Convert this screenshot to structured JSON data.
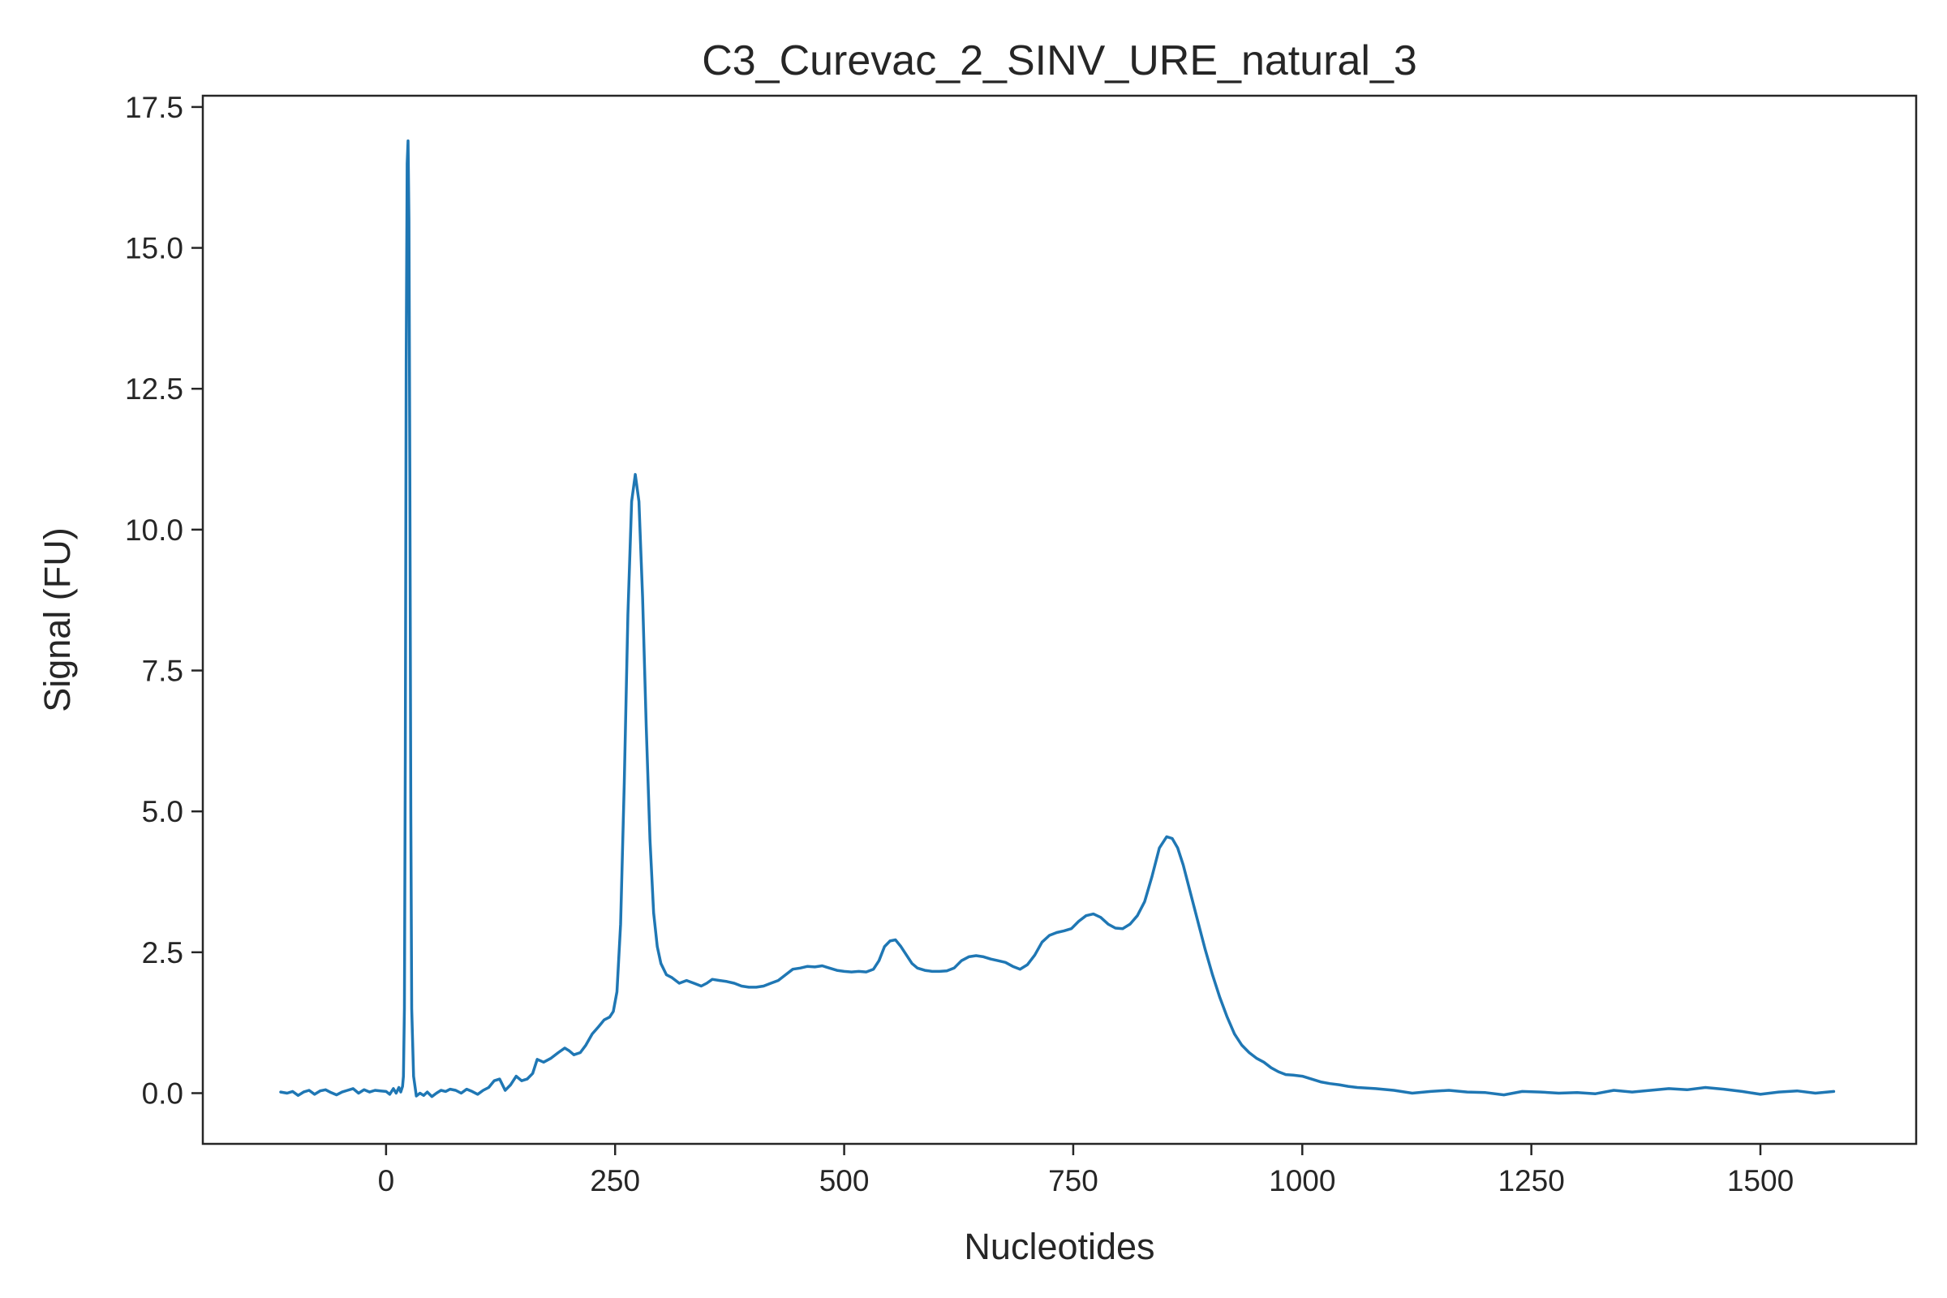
{
  "chart_data": {
    "type": "line",
    "title": "C3_Curevac_2_SINV_URE_natural_3",
    "xlabel": "Nucleotides",
    "ylabel": "Signal (FU)",
    "xlim": [
      -200,
      1670
    ],
    "ylim": [
      -0.9,
      17.7
    ],
    "xticks": [
      0,
      250,
      500,
      750,
      1000,
      1250,
      1500
    ],
    "xtick_labels": [
      "0",
      "250",
      "500",
      "750",
      "1000",
      "1250",
      "1500"
    ],
    "yticks": [
      0.0,
      2.5,
      5.0,
      7.5,
      10.0,
      12.5,
      15.0,
      17.5
    ],
    "ytick_labels": [
      "0.0",
      "2.5",
      "5.0",
      "7.5",
      "10.0",
      "12.5",
      "15.0",
      "17.5"
    ],
    "grid": false,
    "legend": "none",
    "series": [
      {
        "color": "#1f77b4",
        "points": [
          [
            -115,
            0.02
          ],
          [
            -108,
            0.0
          ],
          [
            -102,
            0.03
          ],
          [
            -96,
            -0.04
          ],
          [
            -90,
            0.02
          ],
          [
            -84,
            0.05
          ],
          [
            -78,
            -0.02
          ],
          [
            -72,
            0.04
          ],
          [
            -66,
            0.06
          ],
          [
            -60,
            0.01
          ],
          [
            -54,
            -0.03
          ],
          [
            -48,
            0.02
          ],
          [
            -42,
            0.05
          ],
          [
            -36,
            0.08
          ],
          [
            -30,
            0.0
          ],
          [
            -24,
            0.06
          ],
          [
            -18,
            0.02
          ],
          [
            -12,
            0.05
          ],
          [
            -6,
            0.04
          ],
          [
            0,
            0.03
          ],
          [
            4,
            -0.02
          ],
          [
            8,
            0.08
          ],
          [
            11,
            0.0
          ],
          [
            14,
            0.1
          ],
          [
            16,
            0.02
          ],
          [
            18,
            0.12
          ],
          [
            19,
            0.3
          ],
          [
            20,
            1.5
          ],
          [
            21,
            6.0
          ],
          [
            22,
            13.0
          ],
          [
            23,
            16.5
          ],
          [
            24,
            16.9
          ],
          [
            25,
            15.5
          ],
          [
            26,
            11.0
          ],
          [
            27,
            5.0
          ],
          [
            28,
            1.5
          ],
          [
            30,
            0.3
          ],
          [
            33,
            -0.05
          ],
          [
            37,
            0.0
          ],
          [
            41,
            -0.04
          ],
          [
            45,
            0.02
          ],
          [
            50,
            -0.06
          ],
          [
            55,
            0.0
          ],
          [
            60,
            0.05
          ],
          [
            65,
            0.03
          ],
          [
            70,
            0.07
          ],
          [
            76,
            0.05
          ],
          [
            82,
            0.0
          ],
          [
            88,
            0.07
          ],
          [
            94,
            0.03
          ],
          [
            100,
            -0.02
          ],
          [
            106,
            0.05
          ],
          [
            112,
            0.1
          ],
          [
            118,
            0.22
          ],
          [
            124,
            0.25
          ],
          [
            130,
            0.05
          ],
          [
            136,
            0.15
          ],
          [
            142,
            0.3
          ],
          [
            148,
            0.22
          ],
          [
            154,
            0.25
          ],
          [
            160,
            0.35
          ],
          [
            165,
            0.6
          ],
          [
            172,
            0.55
          ],
          [
            180,
            0.62
          ],
          [
            188,
            0.72
          ],
          [
            195,
            0.8
          ],
          [
            200,
            0.75
          ],
          [
            205,
            0.68
          ],
          [
            212,
            0.72
          ],
          [
            218,
            0.85
          ],
          [
            225,
            1.05
          ],
          [
            232,
            1.18
          ],
          [
            238,
            1.3
          ],
          [
            244,
            1.35
          ],
          [
            248,
            1.45
          ],
          [
            252,
            1.8
          ],
          [
            256,
            3.0
          ],
          [
            260,
            5.5
          ],
          [
            264,
            8.5
          ],
          [
            268,
            10.5
          ],
          [
            272,
            10.98
          ],
          [
            276,
            10.5
          ],
          [
            280,
            8.8
          ],
          [
            284,
            6.5
          ],
          [
            288,
            4.5
          ],
          [
            292,
            3.2
          ],
          [
            296,
            2.6
          ],
          [
            300,
            2.3
          ],
          [
            306,
            2.1
          ],
          [
            312,
            2.05
          ],
          [
            320,
            1.95
          ],
          [
            328,
            2.0
          ],
          [
            336,
            1.95
          ],
          [
            344,
            1.9
          ],
          [
            350,
            1.95
          ],
          [
            356,
            2.02
          ],
          [
            364,
            2.0
          ],
          [
            372,
            1.98
          ],
          [
            380,
            1.95
          ],
          [
            388,
            1.9
          ],
          [
            396,
            1.88
          ],
          [
            404,
            1.88
          ],
          [
            412,
            1.9
          ],
          [
            420,
            1.95
          ],
          [
            428,
            2.0
          ],
          [
            436,
            2.1
          ],
          [
            444,
            2.2
          ],
          [
            452,
            2.22
          ],
          [
            460,
            2.25
          ],
          [
            468,
            2.24
          ],
          [
            476,
            2.26
          ],
          [
            484,
            2.22
          ],
          [
            492,
            2.18
          ],
          [
            500,
            2.16
          ],
          [
            508,
            2.15
          ],
          [
            516,
            2.16
          ],
          [
            524,
            2.15
          ],
          [
            532,
            2.2
          ],
          [
            538,
            2.35
          ],
          [
            544,
            2.6
          ],
          [
            550,
            2.7
          ],
          [
            556,
            2.72
          ],
          [
            562,
            2.6
          ],
          [
            568,
            2.45
          ],
          [
            574,
            2.3
          ],
          [
            580,
            2.22
          ],
          [
            588,
            2.18
          ],
          [
            596,
            2.16
          ],
          [
            604,
            2.16
          ],
          [
            612,
            2.17
          ],
          [
            620,
            2.22
          ],
          [
            628,
            2.35
          ],
          [
            636,
            2.42
          ],
          [
            644,
            2.44
          ],
          [
            652,
            2.42
          ],
          [
            660,
            2.38
          ],
          [
            668,
            2.35
          ],
          [
            676,
            2.32
          ],
          [
            684,
            2.25
          ],
          [
            692,
            2.2
          ],
          [
            700,
            2.28
          ],
          [
            708,
            2.45
          ],
          [
            716,
            2.68
          ],
          [
            724,
            2.8
          ],
          [
            732,
            2.85
          ],
          [
            740,
            2.88
          ],
          [
            748,
            2.92
          ],
          [
            756,
            3.05
          ],
          [
            764,
            3.15
          ],
          [
            772,
            3.18
          ],
          [
            780,
            3.12
          ],
          [
            788,
            3.0
          ],
          [
            796,
            2.93
          ],
          [
            804,
            2.92
          ],
          [
            812,
            3.0
          ],
          [
            820,
            3.15
          ],
          [
            828,
            3.4
          ],
          [
            836,
            3.85
          ],
          [
            844,
            4.35
          ],
          [
            852,
            4.55
          ],
          [
            858,
            4.52
          ],
          [
            864,
            4.35
          ],
          [
            870,
            4.05
          ],
          [
            878,
            3.55
          ],
          [
            886,
            3.05
          ],
          [
            894,
            2.55
          ],
          [
            902,
            2.1
          ],
          [
            910,
            1.7
          ],
          [
            918,
            1.35
          ],
          [
            926,
            1.05
          ],
          [
            934,
            0.85
          ],
          [
            942,
            0.72
          ],
          [
            950,
            0.62
          ],
          [
            958,
            0.55
          ],
          [
            966,
            0.45
          ],
          [
            974,
            0.38
          ],
          [
            982,
            0.33
          ],
          [
            990,
            0.32
          ],
          [
            1000,
            0.3
          ],
          [
            1010,
            0.25
          ],
          [
            1020,
            0.2
          ],
          [
            1030,
            0.17
          ],
          [
            1040,
            0.15
          ],
          [
            1050,
            0.12
          ],
          [
            1060,
            0.1
          ],
          [
            1080,
            0.08
          ],
          [
            1100,
            0.05
          ],
          [
            1120,
            0.0
          ],
          [
            1140,
            0.03
          ],
          [
            1160,
            0.05
          ],
          [
            1180,
            0.02
          ],
          [
            1200,
            0.01
          ],
          [
            1220,
            -0.03
          ],
          [
            1240,
            0.03
          ],
          [
            1260,
            0.02
          ],
          [
            1280,
            0.0
          ],
          [
            1300,
            0.01
          ],
          [
            1320,
            -0.01
          ],
          [
            1340,
            0.05
          ],
          [
            1360,
            0.02
          ],
          [
            1380,
            0.05
          ],
          [
            1400,
            0.08
          ],
          [
            1420,
            0.06
          ],
          [
            1440,
            0.1
          ],
          [
            1460,
            0.07
          ],
          [
            1480,
            0.03
          ],
          [
            1500,
            -0.02
          ],
          [
            1520,
            0.02
          ],
          [
            1540,
            0.04
          ],
          [
            1560,
            0.0
          ],
          [
            1580,
            0.03
          ]
        ]
      }
    ]
  }
}
